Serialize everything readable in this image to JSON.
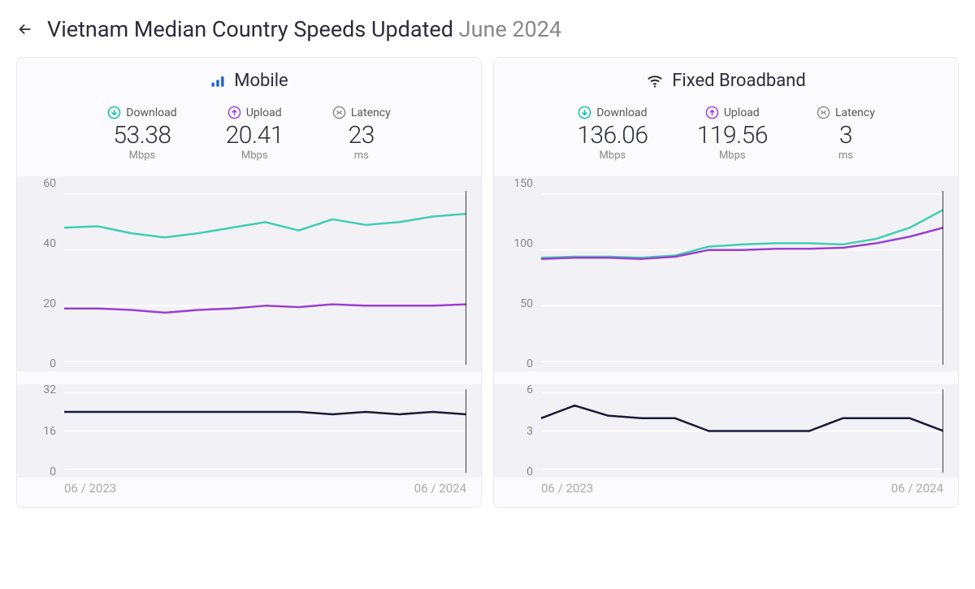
{
  "header": {
    "title_main": "Vietnam Median Country Speeds Updated ",
    "title_muted": "June 2024"
  },
  "colors": {
    "download": "#3fcfb0",
    "upload": "#9b3fcf",
    "latency": "#1a1a3a",
    "download_icon": "#00c2a0",
    "upload_icon": "#a038d8",
    "latency_icon": "#888888",
    "bars_icon": "#1e5fd8",
    "wifi_icon": "#2c2c3a",
    "grid": "#ffffff",
    "panel_bg": "#f2f2f6"
  },
  "x_axis": {
    "start_label": "06 / 2023",
    "end_label": "06 / 2024",
    "points": 13
  },
  "panels": [
    {
      "id": "mobile",
      "title": "Mobile",
      "icon": "bars",
      "metrics": {
        "download": {
          "label": "Download",
          "value": "53.38",
          "unit": "Mbps"
        },
        "upload": {
          "label": "Upload",
          "value": "20.41",
          "unit": "Mbps"
        },
        "latency": {
          "label": "Latency",
          "value": "23",
          "unit": "ms"
        }
      },
      "main_chart": {
        "ylim": [
          0,
          60
        ],
        "yticks": [
          0,
          20,
          40,
          60
        ],
        "series": [
          {
            "key": "download",
            "color": "#3fcfb0",
            "width": 2.5,
            "values": [
              48,
              48.5,
              46,
              44.5,
              46,
              48,
              50,
              47,
              51,
              49,
              50,
              52,
              53
            ]
          },
          {
            "key": "upload",
            "color": "#9b3fcf",
            "width": 2.5,
            "values": [
              19,
              19,
              18.5,
              17.5,
              18.5,
              19,
              20,
              19.5,
              20.5,
              20,
              20,
              20,
              20.5
            ]
          }
        ]
      },
      "latency_chart": {
        "ylim": [
          0,
          32
        ],
        "yticks": [
          0,
          16,
          32
        ],
        "series": [
          {
            "key": "latency",
            "color": "#1a1a3a",
            "width": 2.5,
            "values": [
              24,
              24,
              24,
              24,
              24,
              24,
              24,
              24,
              23,
              24,
              23,
              24,
              23
            ]
          }
        ]
      }
    },
    {
      "id": "fixed",
      "title": "Fixed Broadband",
      "icon": "wifi",
      "metrics": {
        "download": {
          "label": "Download",
          "value": "136.06",
          "unit": "Mbps"
        },
        "upload": {
          "label": "Upload",
          "value": "119.56",
          "unit": "Mbps"
        },
        "latency": {
          "label": "Latency",
          "value": "3",
          "unit": "ms"
        }
      },
      "main_chart": {
        "ylim": [
          0,
          150
        ],
        "yticks": [
          0,
          50,
          100,
          150
        ],
        "series": [
          {
            "key": "download",
            "color": "#3fcfb0",
            "width": 2.5,
            "values": [
              93,
              94,
              94,
              93,
              95,
              103,
              105,
              106,
              106,
              105,
              110,
              120,
              136
            ]
          },
          {
            "key": "upload",
            "color": "#9b3fcf",
            "width": 2.5,
            "values": [
              92,
              93,
              93,
              92,
              94,
              100,
              100,
              101,
              101,
              102,
              106,
              112,
              120
            ]
          }
        ]
      },
      "latency_chart": {
        "ylim": [
          0,
          6
        ],
        "yticks": [
          0,
          3,
          6
        ],
        "series": [
          {
            "key": "latency",
            "color": "#1a1a3a",
            "width": 2.5,
            "values": [
              4,
              5,
              4.2,
              4,
              4,
              3,
              3,
              3,
              3,
              4,
              4,
              4,
              3
            ]
          }
        ]
      }
    }
  ]
}
